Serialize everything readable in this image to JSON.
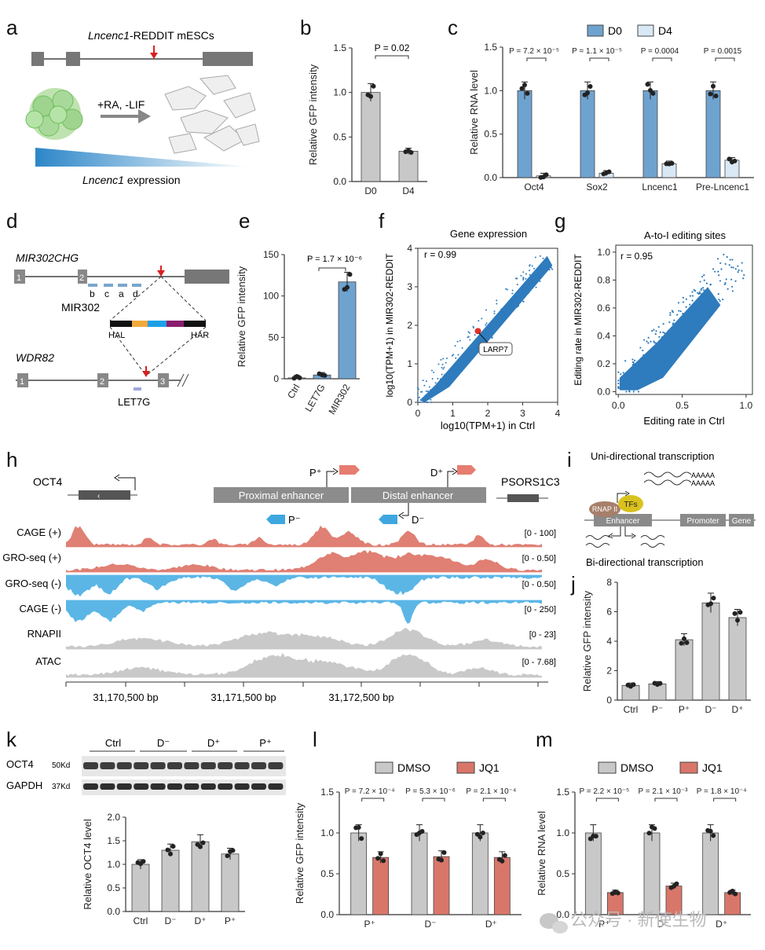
{
  "colors": {
    "blue": "#6fa3cf",
    "lightblue": "#d9e8f5",
    "gray": "#c8c8c8",
    "red": "#d9766a",
    "trackRed": "#e07f73",
    "trackBlue": "#5bb6e6",
    "trackGray": "#c9c9c9",
    "gene": "#888888"
  },
  "panels": {
    "a": "a",
    "b": "b",
    "c": "c",
    "d": "d",
    "e": "e",
    "f": "f",
    "g": "g",
    "h": "h",
    "i": "i",
    "j": "j",
    "k": "k",
    "l": "l",
    "m": "m"
  },
  "a": {
    "title_gene": "Lncenc1",
    "title_rest": "-REDDIT mESCs",
    "treat": "+RA, -LIF",
    "expr_gene": "Lncenc1",
    "expr_rest": " expression"
  },
  "b": {
    "ylabel": "Relative GFP intensity",
    "categories": [
      "D0",
      "D4"
    ],
    "values": [
      1.0,
      0.34
    ],
    "yticks": [
      "0.0",
      "0.5",
      "1.0",
      "1.5"
    ],
    "pval": "P = 0.02"
  },
  "c": {
    "ylabel": "Relative RNA level",
    "legend": [
      "D0",
      "D4"
    ],
    "categories": [
      "Oct4",
      "Sox2",
      "Lncenc1",
      "Pre-Lncenc1"
    ],
    "d0": [
      1.0,
      1.0,
      1.0,
      1.0
    ],
    "d4": [
      0.02,
      0.05,
      0.16,
      0.2
    ],
    "yticks": [
      "0.0",
      "0.5",
      "1.0",
      "1.5"
    ],
    "pvals": [
      "P = 7.2 × 10⁻⁵",
      "P = 1.1 × 10⁻⁵",
      "P = 0.0004",
      "P = 0.0015"
    ]
  },
  "d": {
    "gene1": "MIR302CHG",
    "exon1": "1",
    "exon2": "2",
    "subs": [
      "b",
      "c",
      "a",
      "d"
    ],
    "mir": "MIR302",
    "hal": "HAL",
    "har": "HAR",
    "gene2": "WDR82",
    "g2e1": "1",
    "g2e2": "2",
    "g2e3": "3",
    "let7": "LET7G"
  },
  "e": {
    "ylabel": "Relative GFP intensity",
    "categories": [
      "Ctrl",
      "LET7G",
      "MIR302"
    ],
    "values": [
      1.0,
      4.5,
      117
    ],
    "yticks": [
      "0",
      "50",
      "100",
      "150"
    ],
    "pval": "P = 1.7 × 10⁻⁶"
  },
  "f": {
    "title": "Gene expression",
    "r": "r = 0.99",
    "xlabel": "log10(TPM+1) in Ctrl",
    "ylabel": "log10(TPM+1) in MIR302-REDDIT",
    "xticks": [
      "0",
      "1",
      "2",
      "3",
      "4"
    ],
    "yticks": [
      "0",
      "1",
      "2",
      "3",
      "4"
    ],
    "callout": "LARP7"
  },
  "g": {
    "title": "A-to-I editing sites",
    "r": "r = 0.95",
    "xlabel": "Editing rate in Ctrl",
    "ylabel": "Editing rate in MIR302-REDDIT",
    "xticks": [
      "0.0",
      "0.5",
      "1.0"
    ],
    "yticks": [
      "0.0",
      "0.2",
      "0.4",
      "0.6",
      "0.8",
      "1.0"
    ]
  },
  "h": {
    "oct4": "OCT4",
    "psors": "PSORS1C3",
    "prox": "Proximal enhancer",
    "dist": "Distal enhancer",
    "pplus": "P⁺",
    "dplus": "D⁺",
    "pminus": "P⁻",
    "dminus": "D⁻",
    "tracks": [
      {
        "name": "CAGE (+)",
        "range": "[0 - 100]"
      },
      {
        "name": "GRO-seq (+)",
        "range": "[0 - 0.50]"
      },
      {
        "name": "GRO-seq (-)",
        "range": "[0 - 0.50]"
      },
      {
        "name": "CAGE (-)",
        "range": "[0 - 250]"
      },
      {
        "name": "RNAPII",
        "range": "[0 - 23]"
      },
      {
        "name": "ATAC",
        "range": "[0 - 7.68]"
      }
    ],
    "coords": [
      "31,170,500 bp",
      "31,171,500 bp",
      "31,172,500 bp"
    ]
  },
  "i": {
    "uni": "Uni-directional transcription",
    "bi": "Bi-directional transcription",
    "polya": "AAAAA",
    "rnap": "RNAP II",
    "tfs": "TFs",
    "enh": "Enhancer",
    "prom": "Promoter",
    "gene": "Gene"
  },
  "j": {
    "ylabel": "Relative GFP intensity",
    "categories": [
      "Ctrl",
      "P⁻",
      "P⁺",
      "D⁻",
      "D⁺"
    ],
    "values": [
      1.0,
      1.1,
      4.1,
      6.6,
      5.6
    ],
    "yticks": [
      "0",
      "2",
      "4",
      "6",
      "8"
    ]
  },
  "k": {
    "groups": [
      "Ctrl",
      "D⁻",
      "D⁺",
      "P⁺"
    ],
    "oct4": "OCT4",
    "oct4kd": "50Kd",
    "gapdh": "GAPDH",
    "gapdhkd": "37Kd",
    "ylabel": "Relative OCT4 level",
    "values": [
      1.0,
      1.3,
      1.48,
      1.22
    ],
    "yticks": [
      "0.0",
      "0.5",
      "1.0",
      "1.5",
      "2.0"
    ]
  },
  "l": {
    "legend": [
      "DMSO",
      "JQ1"
    ],
    "ylabel": "Relative GFP intensity",
    "categories": [
      "P⁺",
      "D⁻",
      "D⁺"
    ],
    "dmso": [
      1.0,
      1.0,
      1.0
    ],
    "jq1": [
      0.7,
      0.71,
      0.7
    ],
    "yticks": [
      "0.0",
      "0.5",
      "1.0",
      "1.5"
    ],
    "pvals": [
      "P = 7.2 × 10⁻⁴",
      "P = 5.3 × 10⁻⁶",
      "P = 2.1 × 10⁻⁴"
    ]
  },
  "m": {
    "legend": [
      "DMSO",
      "JQ1"
    ],
    "ylabel": "Relative RNA level",
    "categories": [
      "P⁺",
      "D⁻",
      "D⁺"
    ],
    "dmso": [
      1.0,
      1.0,
      1.0
    ],
    "jq1": [
      0.27,
      0.35,
      0.27
    ],
    "yticks": [
      "0.0",
      "0.5",
      "1.0",
      "1.5"
    ],
    "pvals": [
      "P = 2.2 × 10⁻⁵",
      "P = 2.1 × 10⁻³",
      "P = 1.8 × 10⁻⁴"
    ]
  },
  "watermark": "公众号 · 新使生物",
  "chart_data": [
    {
      "id": "b",
      "type": "bar",
      "categories": [
        "D0",
        "D4"
      ],
      "values": [
        1.0,
        0.34
      ],
      "ylabel": "Relative GFP intensity",
      "ylim": [
        0,
        1.5
      ]
    },
    {
      "id": "c",
      "type": "bar",
      "categories": [
        "Oct4",
        "Sox2",
        "Lncenc1",
        "Pre-Lncenc1"
      ],
      "series": [
        {
          "name": "D0",
          "values": [
            1.0,
            1.0,
            1.0,
            1.0
          ]
        },
        {
          "name": "D4",
          "values": [
            0.02,
            0.05,
            0.16,
            0.2
          ]
        }
      ],
      "ylabel": "Relative RNA level",
      "ylim": [
        0,
        1.5
      ]
    },
    {
      "id": "e",
      "type": "bar",
      "categories": [
        "Ctrl",
        "LET7G",
        "MIR302"
      ],
      "values": [
        1.0,
        4.5,
        117
      ],
      "ylabel": "Relative GFP intensity",
      "ylim": [
        0,
        150
      ]
    },
    {
      "id": "f",
      "type": "scatter",
      "title": "Gene expression",
      "xlabel": "log10(TPM+1) in Ctrl",
      "ylabel": "log10(TPM+1) in MIR302-REDDIT",
      "xlim": [
        0,
        4
      ],
      "ylim": [
        0,
        4
      ],
      "r": 0.99
    },
    {
      "id": "g",
      "type": "scatter",
      "title": "A-to-I editing sites",
      "xlabel": "Editing rate in Ctrl",
      "ylabel": "Editing rate in MIR302-REDDIT",
      "xlim": [
        0,
        1.05
      ],
      "ylim": [
        0,
        1.05
      ],
      "r": 0.95
    },
    {
      "id": "j",
      "type": "bar",
      "categories": [
        "Ctrl",
        "P⁻",
        "P⁺",
        "D⁻",
        "D⁺"
      ],
      "values": [
        1.0,
        1.1,
        4.1,
        6.6,
        5.6
      ],
      "ylabel": "Relative GFP intensity",
      "ylim": [
        0,
        8
      ]
    },
    {
      "id": "k",
      "type": "bar",
      "categories": [
        "Ctrl",
        "D⁻",
        "D⁺",
        "P⁺"
      ],
      "values": [
        1.0,
        1.3,
        1.48,
        1.22
      ],
      "ylabel": "Relative OCT4 level",
      "ylim": [
        0,
        2
      ]
    },
    {
      "id": "l",
      "type": "bar",
      "categories": [
        "P⁺",
        "D⁻",
        "D⁺"
      ],
      "series": [
        {
          "name": "DMSO",
          "values": [
            1.0,
            1.0,
            1.0
          ]
        },
        {
          "name": "JQ1",
          "values": [
            0.7,
            0.71,
            0.7
          ]
        }
      ],
      "ylabel": "Relative GFP intensity",
      "ylim": [
        0,
        1.5
      ]
    },
    {
      "id": "m",
      "type": "bar",
      "categories": [
        "P⁺",
        "D⁻",
        "D⁺"
      ],
      "series": [
        {
          "name": "DMSO",
          "values": [
            1.0,
            1.0,
            1.0
          ]
        },
        {
          "name": "JQ1",
          "values": [
            0.27,
            0.35,
            0.27
          ]
        }
      ],
      "ylabel": "Relative RNA level",
      "ylim": [
        0,
        1.5
      ]
    }
  ]
}
